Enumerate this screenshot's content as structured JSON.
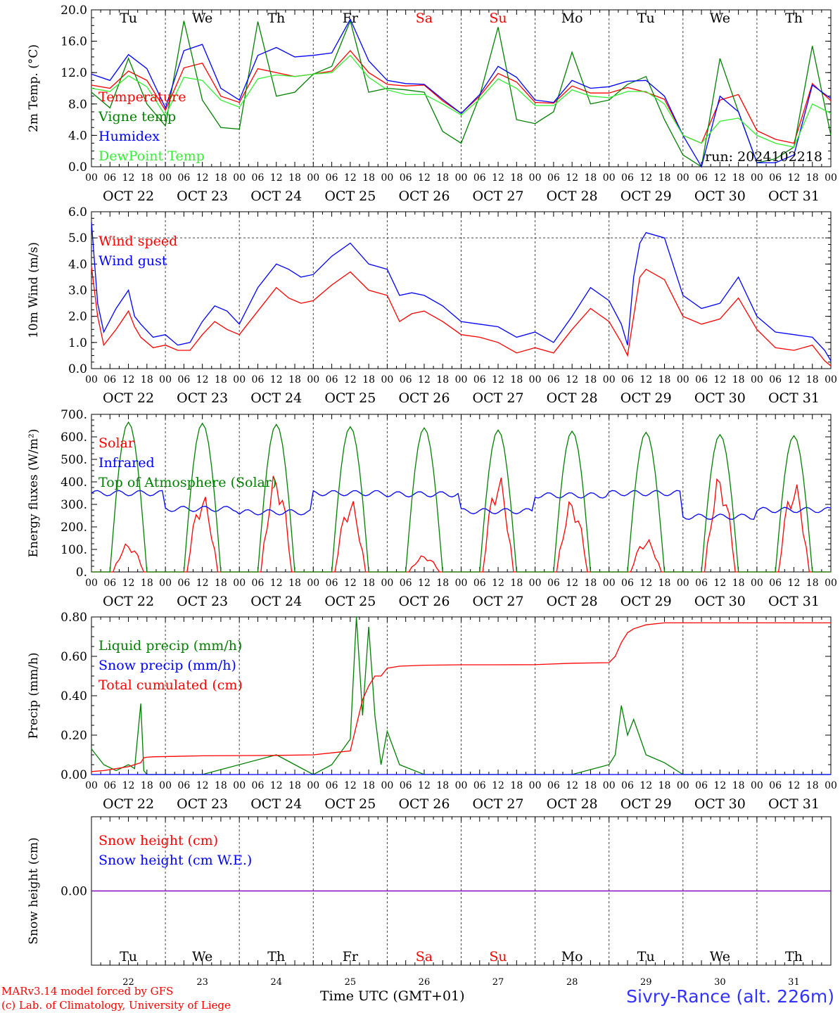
{
  "colors": {
    "red": "#ff0000",
    "green": "#008000",
    "blue": "#0000ff",
    "lightgreen": "#33ee33",
    "purple": "#8000c0",
    "weekend": "#ff0000"
  },
  "days": {
    "weekday_labels": [
      "Tu",
      "We",
      "Th",
      "Fr",
      "Sa",
      "Su",
      "Mo",
      "Tu",
      "We",
      "Th"
    ],
    "weekend_flags": [
      false,
      false,
      false,
      false,
      true,
      true,
      false,
      false,
      false,
      false
    ],
    "date_labels": [
      "OCT 22",
      "OCT 23",
      "OCT 24",
      "OCT 25",
      "OCT 26",
      "OCT 27",
      "OCT 28",
      "OCT 29",
      "OCT 30",
      "OCT 31"
    ],
    "day_numbers": [
      "22",
      "23",
      "24",
      "25",
      "26",
      "27",
      "28",
      "29",
      "30",
      "31"
    ],
    "hour_labels": [
      "00",
      "06",
      "12",
      "18"
    ],
    "final_hour_label": "00"
  },
  "footer": {
    "model": "MARv3.14 model forced by GFS",
    "lab": "(c) Lab. of Climatology, University of Liege",
    "time_axis": "Time UTC (GMT+01)",
    "site": "Sivry-Rance (alt. 226m)"
  },
  "chart_data": [
    {
      "type": "line",
      "id": "temp",
      "ylabel": "2m Temp. (°C)",
      "ylim": [
        0,
        20
      ],
      "yticks": [
        "0.0",
        "4.0",
        "8.0",
        "12.0",
        "16.0",
        "20.0"
      ],
      "ytick_values": [
        0,
        4,
        8,
        12,
        16,
        20
      ],
      "hline": null,
      "annotation": "run: 2024102218",
      "legend": [
        "Temperature",
        "Vigne temp",
        "Humidex",
        "DewPoint Temp"
      ],
      "x_hours": [
        0,
        6,
        12,
        18,
        24,
        30,
        36,
        42,
        48,
        54,
        60,
        66,
        72,
        78,
        84,
        90,
        96,
        102,
        108,
        114,
        120,
        126,
        132,
        138,
        144,
        150,
        156,
        162,
        168,
        174,
        180,
        186,
        192,
        198,
        204,
        210,
        216,
        222,
        228,
        234,
        240
      ],
      "series": [
        {
          "name": "Temperature",
          "color": "#ff0000",
          "values": [
            10.4,
            10.0,
            12.2,
            11.0,
            7.2,
            12.6,
            13.2,
            9.0,
            8.2,
            12.5,
            12.0,
            11.5,
            11.8,
            12.2,
            14.8,
            12.0,
            10.5,
            10.3,
            10.4,
            8.4,
            6.8,
            9.0,
            11.9,
            10.8,
            8.2,
            8.1,
            10.3,
            9.4,
            9.4,
            10.1,
            9.5,
            8.6,
            4.0,
            3.0,
            8.5,
            9.2,
            4.6,
            3.5,
            3.0,
            10.6,
            8.4
          ]
        },
        {
          "name": "Vigne temp",
          "color": "#008000",
          "values": [
            9.5,
            7.5,
            13.8,
            8.0,
            5.2,
            18.6,
            8.5,
            5.0,
            4.8,
            18.5,
            9.0,
            9.5,
            11.8,
            12.8,
            18.6,
            9.5,
            10.0,
            9.8,
            9.5,
            4.5,
            3.0,
            9.0,
            17.8,
            6.0,
            5.5,
            7.0,
            14.6,
            8.0,
            8.5,
            10.5,
            11.5,
            6.0,
            1.5,
            0.0,
            13.8,
            7.0,
            0.5,
            1.0,
            2.5,
            15.4,
            4.0
          ]
        },
        {
          "name": "Humidex",
          "color": "#0000ff",
          "values": [
            11.8,
            11.0,
            14.3,
            12.5,
            7.5,
            14.8,
            15.6,
            10.0,
            8.5,
            14.2,
            15.2,
            14.0,
            14.2,
            14.5,
            18.8,
            13.5,
            11.0,
            10.6,
            10.5,
            8.6,
            6.8,
            9.2,
            12.8,
            11.4,
            8.5,
            8.2,
            11.0,
            10.0,
            10.2,
            10.9,
            11.0,
            9.0,
            4.0,
            0.0,
            9.0,
            7.0,
            0.5,
            0.5,
            1.5,
            10.4,
            8.7
          ]
        },
        {
          "name": "DewPoint Temp",
          "color": "#33ee33",
          "values": [
            10.0,
            9.6,
            11.6,
            10.2,
            6.5,
            11.4,
            11.0,
            8.5,
            7.6,
            11.2,
            11.7,
            11.5,
            11.8,
            12.0,
            14.2,
            11.4,
            9.8,
            9.2,
            9.2,
            8.0,
            6.6,
            8.6,
            11.2,
            10.0,
            7.8,
            7.8,
            9.8,
            9.0,
            8.8,
            9.6,
            9.6,
            8.0,
            4.0,
            3.0,
            5.8,
            6.2,
            4.0,
            3.0,
            2.5,
            8.0,
            6.8
          ]
        }
      ]
    },
    {
      "type": "line",
      "id": "wind",
      "ylabel": "10m Wind (m/s)",
      "ylim": [
        0,
        6
      ],
      "yticks": [
        "0.0",
        "1.0",
        "2.0",
        "3.0",
        "4.0",
        "5.0",
        "6.0"
      ],
      "ytick_values": [
        0,
        1,
        2,
        3,
        4,
        5,
        6
      ],
      "hline": 5,
      "legend": [
        "Wind speed",
        "Wind gust"
      ],
      "x_hours": [
        0,
        2,
        4,
        8,
        12,
        14,
        16,
        20,
        24,
        28,
        32,
        36,
        40,
        44,
        48,
        54,
        60,
        64,
        68,
        72,
        78,
        84,
        90,
        96,
        100,
        104,
        108,
        114,
        120,
        126,
        132,
        138,
        144,
        150,
        156,
        162,
        168,
        172,
        174,
        176,
        178,
        180,
        186,
        192,
        198,
        204,
        210,
        216,
        222,
        228,
        234,
        238,
        240
      ],
      "series": [
        {
          "name": "Wind speed",
          "color": "#ff0000",
          "values": [
            3.9,
            2.0,
            0.9,
            1.5,
            2.2,
            1.6,
            1.2,
            0.8,
            0.9,
            0.7,
            0.7,
            1.3,
            1.8,
            1.5,
            1.3,
            2.2,
            3.1,
            2.7,
            2.5,
            2.6,
            3.2,
            3.7,
            3.0,
            2.8,
            1.8,
            2.1,
            2.2,
            1.8,
            1.3,
            1.2,
            1.0,
            0.6,
            0.8,
            0.6,
            1.5,
            2.3,
            1.8,
            1.0,
            0.5,
            2.0,
            3.5,
            3.8,
            3.4,
            2.0,
            1.7,
            1.9,
            2.7,
            1.5,
            0.8,
            0.7,
            0.9,
            0.3,
            0.1
          ]
        },
        {
          "name": "Wind gust",
          "color": "#0000ff",
          "values": [
            5.6,
            2.5,
            1.4,
            2.3,
            3.0,
            2.0,
            1.7,
            1.2,
            1.3,
            0.9,
            1.0,
            1.8,
            2.4,
            2.2,
            1.7,
            3.1,
            4.0,
            3.8,
            3.5,
            3.6,
            4.3,
            4.8,
            4.0,
            3.8,
            2.8,
            2.9,
            2.8,
            2.4,
            1.8,
            1.7,
            1.6,
            1.2,
            1.4,
            1.0,
            2.0,
            3.1,
            2.6,
            1.7,
            0.9,
            3.5,
            4.8,
            5.2,
            5.0,
            2.8,
            2.3,
            2.5,
            3.5,
            2.0,
            1.4,
            1.3,
            1.2,
            0.7,
            0.3
          ]
        }
      ]
    },
    {
      "type": "line",
      "id": "energy",
      "ylabel": "Energy fluxes (W/m²)",
      "ylim": [
        0,
        700
      ],
      "yticks": [
        "0.",
        "100.",
        "200.",
        "300.",
        "400.",
        "500.",
        "600.",
        "700."
      ],
      "ytick_values": [
        0,
        100,
        200,
        300,
        400,
        500,
        600,
        700
      ],
      "hline": null,
      "legend": [
        "Solar",
        "Infrared",
        "Top of Atmosphere (Solar)"
      ],
      "peaks": {
        "toa": [
          665,
          660,
          655,
          645,
          640,
          630,
          625,
          620,
          610,
          605
        ],
        "solar": [
          130,
          350,
          450,
          330,
          75,
          440,
          330,
          150,
          440,
          410
        ]
      },
      "daylight_hours": [
        7,
        17
      ],
      "series": [
        {
          "name": "Solar",
          "color": "#ff0000",
          "values": [
            130,
            350,
            450,
            330,
            75,
            440,
            330,
            150,
            440,
            410
          ]
        },
        {
          "name": "Infrared",
          "color": "#0000ff",
          "values": [
            350,
            280,
            265,
            350,
            345,
            270,
            340,
            350,
            245,
            275
          ]
        },
        {
          "name": "Top of Atmosphere (Solar)",
          "color": "#008000",
          "values": [
            665,
            660,
            655,
            645,
            640,
            630,
            625,
            620,
            610,
            605
          ]
        }
      ]
    },
    {
      "type": "line",
      "id": "precip",
      "ylabel": "Precip (mm/h)",
      "ylim": [
        0,
        0.8
      ],
      "yticks": [
        "0.00",
        "0.20",
        "0.40",
        "0.60",
        "0.80"
      ],
      "ytick_values": [
        0,
        0.2,
        0.4,
        0.6,
        0.8
      ],
      "hline": null,
      "legend": [
        "Liquid precip (mm/h)",
        "Snow precip (mm/h)",
        "Total cumulated (cm)"
      ],
      "x_hours": [
        0,
        4,
        8,
        12,
        14,
        16,
        17,
        18,
        20,
        36,
        60,
        72,
        78,
        84,
        86,
        88,
        90,
        92,
        94,
        96,
        100,
        108,
        120,
        132,
        144,
        156,
        168,
        170,
        172,
        174,
        176,
        180,
        186,
        192,
        240
      ],
      "series": [
        {
          "name": "Liquid precip (mm/h)",
          "color": "#008000",
          "values": [
            0.13,
            0.05,
            0.02,
            0.05,
            0.03,
            0.36,
            0.02,
            0.0,
            0.0,
            0.0,
            0.1,
            0.0,
            0.05,
            0.18,
            0.84,
            0.3,
            0.75,
            0.3,
            0.05,
            0.22,
            0.05,
            0.0,
            0.0,
            0.0,
            0.0,
            0.0,
            0.05,
            0.1,
            0.35,
            0.2,
            0.28,
            0.1,
            0.06,
            0.0,
            0.0
          ]
        },
        {
          "name": "Snow precip (mm/h)",
          "color": "#0000ff",
          "values": [
            0,
            0,
            0,
            0,
            0,
            0,
            0,
            0,
            0,
            0,
            0,
            0,
            0,
            0,
            0,
            0,
            0,
            0,
            0,
            0,
            0,
            0,
            0,
            0,
            0,
            0,
            0,
            0,
            0,
            0,
            0,
            0,
            0,
            0,
            0
          ]
        },
        {
          "name": "Total cumulated (cm)",
          "color": "#ff0000",
          "values": [
            0.015,
            0.02,
            0.03,
            0.04,
            0.05,
            0.06,
            0.085,
            0.088,
            0.09,
            0.095,
            0.097,
            0.1,
            0.11,
            0.12,
            0.25,
            0.38,
            0.45,
            0.5,
            0.5,
            0.54,
            0.55,
            0.555,
            0.557,
            0.557,
            0.558,
            0.565,
            0.568,
            0.6,
            0.67,
            0.72,
            0.74,
            0.76,
            0.77,
            0.77,
            0.77
          ]
        }
      ]
    },
    {
      "type": "line",
      "id": "snow",
      "ylabel": "Snow height (cm)",
      "ylim": [
        -1,
        1
      ],
      "yticks": [
        "0.00"
      ],
      "ytick_values": [
        0
      ],
      "hline": null,
      "legend": [
        "Snow height (cm)",
        "Snow height (cm W.E.)"
      ],
      "x_hours": [
        0,
        240
      ],
      "series": [
        {
          "name": "Snow height (cm)",
          "color": "#ff0000",
          "values": [
            0,
            0
          ]
        },
        {
          "name": "Snow height (cm W.E.)",
          "color": "#0000ff",
          "values": [
            0,
            0
          ]
        }
      ]
    }
  ]
}
